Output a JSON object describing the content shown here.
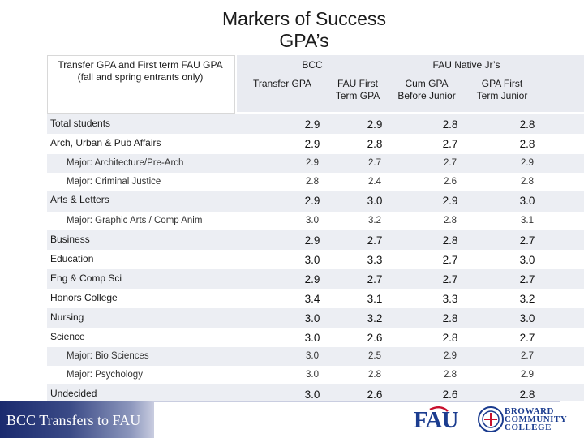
{
  "title": {
    "line1": "Markers of Success",
    "line2": "GPA’s"
  },
  "header": {
    "left_label_1": "Transfer GPA and First term FAU GPA",
    "left_label_2": "(fall and spring entrants only)",
    "group_bcc": "BCC",
    "group_fau": "FAU Native Jr’s",
    "col1": "Transfer GPA",
    "col2_1": "FAU First",
    "col2_2": "Term GPA",
    "col3_1": "Cum GPA",
    "col3_2": "Before Junior",
    "col4_1": "GPA First",
    "col4_2": "Term Junior"
  },
  "rows": [
    {
      "label": "Total students",
      "values": [
        "2.9",
        "2.9",
        "2.8",
        "2.8"
      ],
      "major": false
    },
    {
      "label": "Arch, Urban & Pub Affairs",
      "values": [
        "2.9",
        "2.8",
        "2.7",
        "2.8"
      ],
      "major": false
    },
    {
      "label": "Major: Architecture/Pre-Arch",
      "values": [
        "2.9",
        "2.7",
        "2.7",
        "2.9"
      ],
      "major": true
    },
    {
      "label": "Major: Criminal Justice",
      "values": [
        "2.8",
        "2.4",
        "2.6",
        "2.8"
      ],
      "major": true
    },
    {
      "label": "Arts & Letters",
      "values": [
        "2.9",
        "3.0",
        "2.9",
        "3.0"
      ],
      "major": false
    },
    {
      "label": "Major: Graphic Arts / Comp Anim",
      "values": [
        "3.0",
        "3.2",
        "2.8",
        "3.1"
      ],
      "major": true
    },
    {
      "label": "Business",
      "values": [
        "2.9",
        "2.7",
        "2.8",
        "2.7"
      ],
      "major": false
    },
    {
      "label": "Education",
      "values": [
        "3.0",
        "3.3",
        "2.7",
        "3.0"
      ],
      "major": false
    },
    {
      "label": "Eng & Comp Sci",
      "values": [
        "2.9",
        "2.7",
        "2.7",
        "2.7"
      ],
      "major": false
    },
    {
      "label": "Honors College",
      "values": [
        "3.4",
        "3.1",
        "3.3",
        "3.2"
      ],
      "major": false
    },
    {
      "label": "Nursing",
      "values": [
        "3.0",
        "3.2",
        "2.8",
        "3.0"
      ],
      "major": false
    },
    {
      "label": "Science",
      "values": [
        "3.0",
        "2.6",
        "2.8",
        "2.7"
      ],
      "major": false
    },
    {
      "label": "Major: Bio Sciences",
      "values": [
        "3.0",
        "2.5",
        "2.9",
        "2.7"
      ],
      "major": true
    },
    {
      "label": "Major: Psychology",
      "values": [
        "3.0",
        "2.8",
        "2.8",
        "2.9"
      ],
      "major": true
    },
    {
      "label": "Undecided",
      "values": [
        "3.0",
        "2.6",
        "2.6",
        "2.8"
      ],
      "major": false
    }
  ],
  "footer": {
    "text": "BCC Transfers to FAU"
  },
  "logos": {
    "fau": "FAU",
    "bcc_1": "BROWARD",
    "bcc_2": "COMMUNITY",
    "bcc_3": "COLLEGE",
    "fau_color": "#1b3c8f",
    "fau_accent": "#c8102e"
  }
}
